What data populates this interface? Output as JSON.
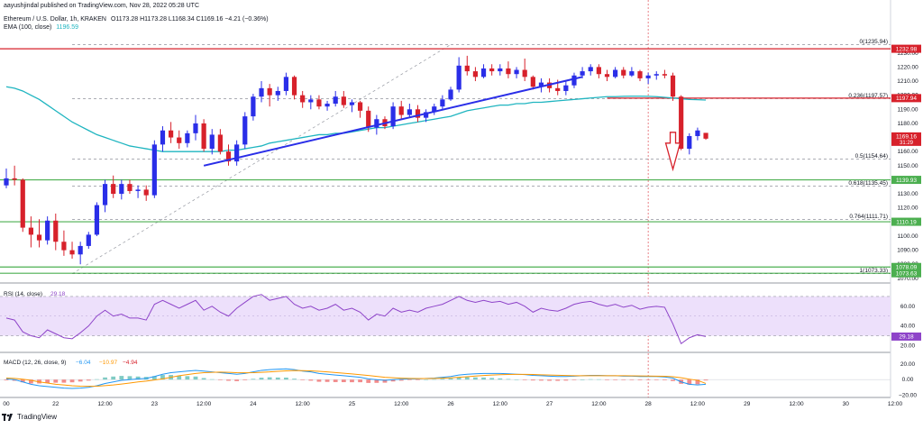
{
  "header": {
    "publisher": "aayushjindal published on TradingView.com, Nov 28, 2022 05:28 UTC",
    "symbol": "Ethereum / U.S. Dollar, 1h, KRAKEN",
    "ohlc": "O1173.28 H1173.28 L1168.34 C1169.16 −4.21 (−0.36%)",
    "ema_label": "EMA (100, close)",
    "ema_value": "1196.59"
  },
  "colors": {
    "up": "#2a2ee8",
    "down": "#d7212b",
    "ema": "#1fb5c0",
    "red_line": "#d7212b",
    "green_line": "#4caf50",
    "trendline": "#2a2ee8",
    "rsi_band": "#ede0fb",
    "rsi_line": "#8e44c9",
    "macd": "#2196f3",
    "signal": "#ff9800",
    "hist_neg": "#f28b8b",
    "hist_pos": "#80cbc4"
  },
  "chart_data": {
    "type": "candlestick",
    "price_axis": {
      "ylim": [
        1068,
        1242
      ],
      "ticks": [
        1070.0,
        1080.0,
        1090.0,
        1100.0,
        1120.0,
        1130.0,
        1140.0,
        1150.0,
        1160.0,
        1170.0,
        1180.0,
        1190.0,
        1200.0,
        1210.0,
        1220.0,
        1230.0
      ],
      "tick_labels": [
        "1070.00",
        "1080.00",
        "1090.00",
        "1100.00",
        "1120.00",
        "1130.00",
        "1140.00",
        "1150.00",
        "1160.00",
        "1170.00",
        "1180.00",
        "1190.00",
        "1200.00",
        "1210.00",
        "1220.00",
        "1230.00"
      ]
    },
    "x_axis": {
      "labels": [
        "00",
        "22",
        "12:00",
        "23",
        "12:00",
        "24",
        "12:00",
        "25",
        "12:00",
        "26",
        "12:00",
        "27",
        "12:00",
        "28",
        "12:00",
        "29",
        "12:00",
        "30",
        "12:00"
      ],
      "label_index": [
        0,
        6,
        12,
        18,
        24,
        30,
        36,
        42,
        48,
        54,
        60,
        66,
        72,
        78,
        84,
        90,
        96,
        102,
        108
      ]
    },
    "ohlc": [
      [
        1136,
        1148,
        1134,
        1141
      ],
      [
        1141,
        1150,
        1136,
        1140
      ],
      [
        1140,
        1141,
        1103,
        1106
      ],
      [
        1106,
        1114,
        1092,
        1101
      ],
      [
        1101,
        1112,
        1092,
        1097
      ],
      [
        1097,
        1114,
        1094,
        1111
      ],
      [
        1111,
        1116,
        1090,
        1096
      ],
      [
        1096,
        1104,
        1086,
        1090
      ],
      [
        1090,
        1096,
        1084,
        1087
      ],
      [
        1087,
        1096,
        1080,
        1093
      ],
      [
        1093,
        1103,
        1091,
        1101
      ],
      [
        1101,
        1124,
        1100,
        1122
      ],
      [
        1122,
        1140,
        1117,
        1137
      ],
      [
        1137,
        1143,
        1127,
        1130
      ],
      [
        1130,
        1140,
        1126,
        1137
      ],
      [
        1137,
        1140,
        1130,
        1132
      ],
      [
        1132,
        1136,
        1127,
        1133
      ],
      [
        1133,
        1136,
        1125,
        1129
      ],
      [
        1129,
        1168,
        1127,
        1165
      ],
      [
        1165,
        1178,
        1160,
        1175
      ],
      [
        1175,
        1181,
        1166,
        1170
      ],
      [
        1170,
        1175,
        1162,
        1166
      ],
      [
        1166,
        1175,
        1163,
        1173
      ],
      [
        1173,
        1186,
        1168,
        1180
      ],
      [
        1180,
        1183,
        1160,
        1162
      ],
      [
        1162,
        1176,
        1158,
        1172
      ],
      [
        1172,
        1176,
        1158,
        1160
      ],
      [
        1160,
        1165,
        1150,
        1153
      ],
      [
        1153,
        1168,
        1150,
        1165
      ],
      [
        1165,
        1188,
        1162,
        1185
      ],
      [
        1185,
        1201,
        1182,
        1199
      ],
      [
        1199,
        1210,
        1195,
        1205
      ],
      [
        1205,
        1208,
        1192,
        1200
      ],
      [
        1200,
        1206,
        1196,
        1203
      ],
      [
        1203,
        1216,
        1200,
        1213
      ],
      [
        1213,
        1214,
        1197,
        1200
      ],
      [
        1200,
        1203,
        1191,
        1195
      ],
      [
        1195,
        1200,
        1190,
        1197
      ],
      [
        1197,
        1200,
        1190,
        1192
      ],
      [
        1192,
        1196,
        1189,
        1194
      ],
      [
        1194,
        1203,
        1192,
        1199
      ],
      [
        1199,
        1203,
        1191,
        1193
      ],
      [
        1193,
        1197,
        1188,
        1195
      ],
      [
        1195,
        1196,
        1184,
        1189
      ],
      [
        1189,
        1192,
        1174,
        1177
      ],
      [
        1177,
        1186,
        1172,
        1183
      ],
      [
        1183,
        1185,
        1176,
        1178
      ],
      [
        1178,
        1195,
        1176,
        1192
      ],
      [
        1192,
        1196,
        1183,
        1186
      ],
      [
        1186,
        1194,
        1184,
        1190
      ],
      [
        1190,
        1193,
        1181,
        1184
      ],
      [
        1184,
        1190,
        1181,
        1188
      ],
      [
        1188,
        1194,
        1186,
        1192
      ],
      [
        1192,
        1200,
        1190,
        1197
      ],
      [
        1197,
        1206,
        1196,
        1204
      ],
      [
        1204,
        1227,
        1202,
        1221
      ],
      [
        1221,
        1228,
        1214,
        1217
      ],
      [
        1217,
        1220,
        1210,
        1213
      ],
      [
        1213,
        1222,
        1212,
        1219
      ],
      [
        1219,
        1222,
        1214,
        1217
      ],
      [
        1217,
        1222,
        1214,
        1219
      ],
      [
        1219,
        1224,
        1212,
        1215
      ],
      [
        1215,
        1220,
        1212,
        1218
      ],
      [
        1218,
        1226,
        1210,
        1213
      ],
      [
        1213,
        1214,
        1204,
        1206
      ],
      [
        1206,
        1212,
        1202,
        1209
      ],
      [
        1209,
        1212,
        1202,
        1205
      ],
      [
        1205,
        1211,
        1200,
        1203
      ],
      [
        1203,
        1210,
        1200,
        1207
      ],
      [
        1207,
        1216,
        1205,
        1214
      ],
      [
        1214,
        1220,
        1212,
        1217
      ],
      [
        1217,
        1222,
        1214,
        1220
      ],
      [
        1220,
        1222,
        1212,
        1215
      ],
      [
        1215,
        1218,
        1210,
        1213
      ],
      [
        1213,
        1220,
        1212,
        1218
      ],
      [
        1218,
        1220,
        1212,
        1214
      ],
      [
        1214,
        1220,
        1213,
        1217
      ],
      [
        1217,
        1218,
        1210,
        1212
      ],
      [
        1212,
        1216,
        1208,
        1214
      ],
      [
        1214,
        1217,
        1211,
        1215
      ],
      [
        1215,
        1218,
        1212,
        1214
      ],
      [
        1214,
        1216,
        1196,
        1199
      ],
      [
        1199,
        1200,
        1161,
        1162
      ],
      [
        1162,
        1173,
        1158,
        1171
      ],
      [
        1171,
        1177,
        1168,
        1175
      ],
      [
        1173.28,
        1173.28,
        1168.34,
        1169.16
      ]
    ],
    "ema": [
      1206,
      1205,
      1203,
      1200,
      1197,
      1193,
      1189,
      1185,
      1181,
      1178,
      1175,
      1172,
      1170,
      1168,
      1166,
      1164,
      1163,
      1162,
      1161,
      1160,
      1160,
      1160,
      1160,
      1160,
      1160,
      1160,
      1160,
      1161,
      1161,
      1162,
      1163,
      1164,
      1166,
      1167,
      1168,
      1169,
      1170,
      1171,
      1172,
      1172,
      1173,
      1173,
      1174,
      1175,
      1176,
      1177,
      1177,
      1178,
      1179,
      1180,
      1181,
      1182,
      1183,
      1184,
      1185,
      1187,
      1189,
      1190,
      1191,
      1192,
      1193,
      1193,
      1194,
      1194,
      1195,
      1195,
      1195.5,
      1196,
      1196.5,
      1197,
      1197.5,
      1198,
      1198.5,
      1199,
      1199,
      1199.2,
      1199.3,
      1199.3,
      1199.2,
      1199,
      1198.5,
      1198,
      1197.5,
      1197,
      1196.8,
      1196.6
    ],
    "horizontal_lines": [
      {
        "kind": "red",
        "price": 1232.98,
        "label": "1232.98"
      },
      {
        "kind": "red",
        "price": 1197.94,
        "label": "1197.94",
        "from_index": 73
      },
      {
        "kind": "green",
        "price": 1139.93,
        "label": "1139.93"
      },
      {
        "kind": "green",
        "price": 1110.19,
        "label": "1110.19"
      },
      {
        "kind": "green",
        "price": 1078.09,
        "label": "1078.09"
      },
      {
        "kind": "green",
        "price": 1073.63,
        "label": "1073.63"
      }
    ],
    "fibonacci": [
      {
        "level": "0",
        "price": 1235.94,
        "label": "0(1235.94)",
        "from": 8
      },
      {
        "level": "0.236",
        "price": 1197.57,
        "label": "0.236(1197.57)",
        "from": 8
      },
      {
        "level": "0.5",
        "price": 1154.64,
        "label": "0.5(1154.64)",
        "from": 8
      },
      {
        "level": "0.618",
        "price": 1135.45,
        "label": "0.618(1135.45)",
        "from": 8
      },
      {
        "level": "0.764",
        "price": 1111.71,
        "label": "0.764(1111.71)",
        "from": 8
      },
      {
        "level": "1",
        "price": 1073.33,
        "label": "1(1073.33)",
        "from": 8
      }
    ],
    "fib_diagonal": [
      [
        8,
        1073.33
      ],
      [
        54,
        1235.94
      ]
    ],
    "trendline": [
      [
        24,
        1150
      ],
      [
        70,
        1213
      ]
    ],
    "price_badge": {
      "price": 1169.16,
      "label": "1169.16",
      "countdown": "31:29"
    },
    "arrow": {
      "x_index": 81,
      "from_price": 1166,
      "to_price": 1150
    },
    "rsi": {
      "label": "RSI (14, close)",
      "value_label": "29.18",
      "ylim": [
        14,
        80
      ],
      "band": [
        30,
        70
      ],
      "ticks": [
        20,
        40,
        60
      ],
      "tick_labels": [
        "20.00",
        "40.00",
        "60.00"
      ],
      "values": [
        48,
        46,
        34,
        30,
        28,
        36,
        32,
        28,
        27,
        33,
        40,
        50,
        56,
        50,
        52,
        48,
        48,
        46,
        62,
        66,
        62,
        58,
        62,
        66,
        56,
        60,
        54,
        50,
        58,
        64,
        70,
        72,
        66,
        68,
        70,
        62,
        58,
        60,
        56,
        58,
        62,
        56,
        58,
        54,
        46,
        52,
        50,
        58,
        54,
        56,
        54,
        58,
        60,
        62,
        66,
        70,
        66,
        64,
        66,
        64,
        65,
        62,
        64,
        60,
        54,
        58,
        56,
        55,
        58,
        62,
        64,
        65,
        62,
        60,
        62,
        59,
        61,
        57,
        59,
        60,
        59,
        42,
        22,
        28,
        31,
        29.18
      ]
    },
    "macd": {
      "label": "MACD (12, 26, close, 9)",
      "value_labels": [
        "−6.04",
        "−10.97",
        "−4.94"
      ],
      "ylim": [
        -22,
        33
      ],
      "ticks": [
        -20,
        0,
        20
      ],
      "tick_labels": [
        "−20.00",
        "0.00",
        "20.00"
      ],
      "macd": [
        1,
        0,
        -3,
        -6,
        -8,
        -9,
        -10,
        -11,
        -11.5,
        -11,
        -10,
        -8,
        -5,
        -3,
        -1,
        0,
        1,
        1.5,
        4,
        7,
        9,
        10,
        11,
        12,
        11,
        10,
        9,
        8,
        7,
        8,
        10,
        12,
        13,
        13.5,
        14,
        13,
        11,
        10,
        8,
        7,
        6,
        5,
        4,
        3,
        1,
        0,
        -1,
        0,
        0.5,
        1,
        1,
        1.5,
        2,
        3,
        4,
        6,
        7,
        7.5,
        8,
        8,
        8,
        7.5,
        7,
        6.5,
        5.5,
        5,
        4.5,
        4,
        4,
        4.5,
        5,
        5.5,
        5.5,
        5,
        5,
        4.5,
        4.5,
        4,
        4,
        4,
        3.5,
        2,
        -3,
        -6,
        -7,
        -6.04
      ],
      "signal": [
        2,
        1.5,
        0.5,
        -1,
        -3,
        -4.5,
        -6,
        -7,
        -8,
        -8.5,
        -8.7,
        -8.5,
        -7.8,
        -7,
        -5.8,
        -4.5,
        -3,
        -2,
        -0.5,
        1,
        3,
        5,
        6.5,
        8,
        9,
        9.5,
        9.7,
        9.5,
        9,
        8.8,
        9,
        9.5,
        10,
        10.8,
        11.4,
        11.8,
        11.7,
        11.4,
        10.8,
        10,
        9.2,
        8.3,
        7.4,
        6.4,
        5.3,
        4.2,
        3,
        2.4,
        1.9,
        1.6,
        1.4,
        1.4,
        1.5,
        1.8,
        2.3,
        3,
        3.8,
        4.6,
        5.3,
        5.9,
        6.4,
        6.7,
        6.8,
        6.8,
        6.6,
        6.3,
        6,
        5.6,
        5.3,
        5.1,
        5,
        5,
        5.1,
        5.1,
        5.1,
        5,
        4.9,
        4.8,
        4.6,
        4.5,
        4.3,
        3.8,
        2.4,
        0.6,
        -1,
        -4.94
      ]
    }
  },
  "footer": {
    "logo_text": "TradingView"
  }
}
